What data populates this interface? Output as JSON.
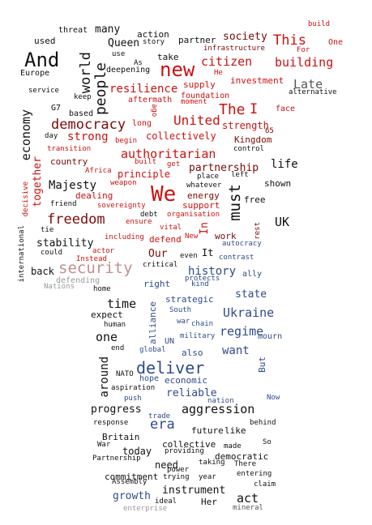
{
  "palette": {
    "black": "#111111",
    "dark_red": "#7a0a0a",
    "red": "#cc1111",
    "pink_grey": "#c0908c",
    "blue": "#2f4b8c",
    "grey": "#999999"
  },
  "words": [
    "build",
    "One",
    "used",
    "threat",
    "many",
    "action",
    "society",
    "This",
    "partner",
    "story",
    "Queen",
    "For",
    "And",
    "use",
    "infrastructure",
    "building",
    "Europe",
    "world",
    "As",
    "take",
    "new",
    "citizen",
    "He",
    "people",
    "deepening",
    "investment",
    "Late",
    "service",
    "keep",
    "resilience",
    "supply",
    "alternative",
    "aftermath",
    "ago",
    "foundation",
    "moment",
    "The",
    "I",
    "G7",
    "based",
    "face",
    "economy",
    "democracy",
    "long",
    "United",
    "strength",
    "day",
    "strong",
    "collectively",
    "65",
    "begin",
    "Kingdom",
    "transition",
    "control",
    "country",
    "authoritarian",
    "together",
    "built",
    "get",
    "life",
    "Africa",
    "principle",
    "partnership",
    "Majesty",
    "weapon",
    "whatever",
    "place",
    "left",
    "shown",
    "decisive",
    "dealing",
    "We",
    "energy",
    "must",
    "friend",
    "sovereignty",
    "support",
    "free",
    "freedom",
    "ensure",
    "debt",
    "organisation",
    "UK",
    "In",
    "vital",
    "rest",
    "stability",
    "tie",
    "including",
    "defend",
    "New",
    "work",
    "autocracy",
    "could",
    "actor",
    "Instead",
    "Our",
    "even",
    "It",
    "contrast",
    "international",
    "back",
    "security",
    "critical",
    "history",
    "ally",
    "defending",
    "protects",
    "Nations",
    "right",
    "kind",
    "home",
    "state",
    "time",
    "strategic",
    "Ukraine",
    "expect",
    "South",
    "human",
    "chain",
    "war",
    "one",
    "regime",
    "alliance",
    "military",
    "mourn",
    "UN",
    "end",
    "want",
    "also",
    "global",
    "But",
    "around",
    "deliver",
    "NATO",
    "hope",
    "economic",
    "aspiration",
    "reliable",
    "nation",
    "Now",
    "push",
    "progress",
    "aggression",
    "trade",
    "behind",
    "response",
    "era",
    "future",
    "like",
    "Britain",
    "So",
    "War",
    "today",
    "providing",
    "collective",
    "made",
    "Partnership",
    "democratic",
    "taking",
    "There",
    "need",
    "power",
    "commitment",
    "trying",
    "year",
    "entering",
    "Assembly",
    "claim",
    "growth",
    "instrument",
    "act",
    "ideal",
    "enterprise",
    "Her",
    "mineral"
  ]
}
